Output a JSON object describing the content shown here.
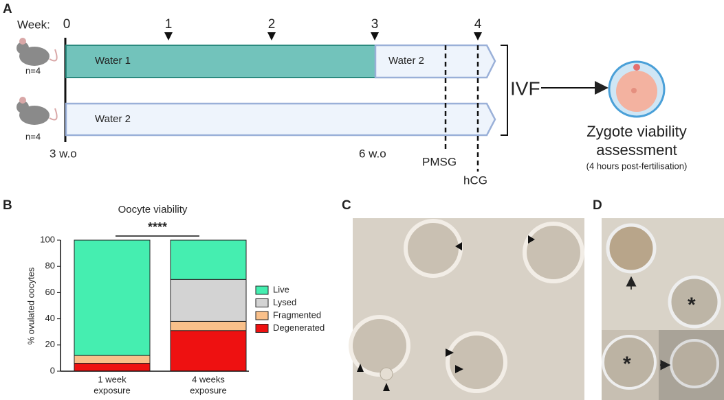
{
  "panel_labels": [
    "A",
    "B",
    "C",
    "D"
  ],
  "timeline": {
    "week_label": "Week:",
    "weeks": [
      0,
      1,
      2,
      3,
      4
    ],
    "group_size": [
      "n=4",
      "n=4"
    ],
    "bar1": [
      "Water 1",
      "Water 2"
    ],
    "bar2": "Water 2",
    "start_age": "3 w.o",
    "end_age": "6 w.o",
    "injections": [
      "PMSG",
      "hCG"
    ],
    "method": "IVF",
    "outcome": [
      "Zygote viability",
      "assessment"
    ],
    "outcome_note": "(4 hours post-fertilisation)"
  },
  "chart_data": {
    "type": "stacked_bar",
    "title": "Oocyte viability",
    "significance": "****",
    "y_label": "% ovulated oocytes",
    "categories": [
      [
        "1 week",
        "exposure"
      ],
      [
        "4 weeks",
        "exposure"
      ]
    ],
    "series": [
      {
        "name": "Live",
        "color": "#45eeb0",
        "values": [
          88,
          30
        ]
      },
      {
        "name": "Lysed",
        "color": "#d3d3d3",
        "values": [
          0,
          32
        ]
      },
      {
        "name": "Fragmented",
        "color": "#f9c08a",
        "values": [
          6,
          7
        ]
      },
      {
        "name": "Degenerated",
        "color": "#ee1111",
        "values": [
          6,
          31
        ]
      }
    ],
    "ylim": [
      0,
      100
    ],
    "yticks": [
      0,
      20,
      40,
      60,
      80,
      100
    ],
    "legend": "right"
  }
}
